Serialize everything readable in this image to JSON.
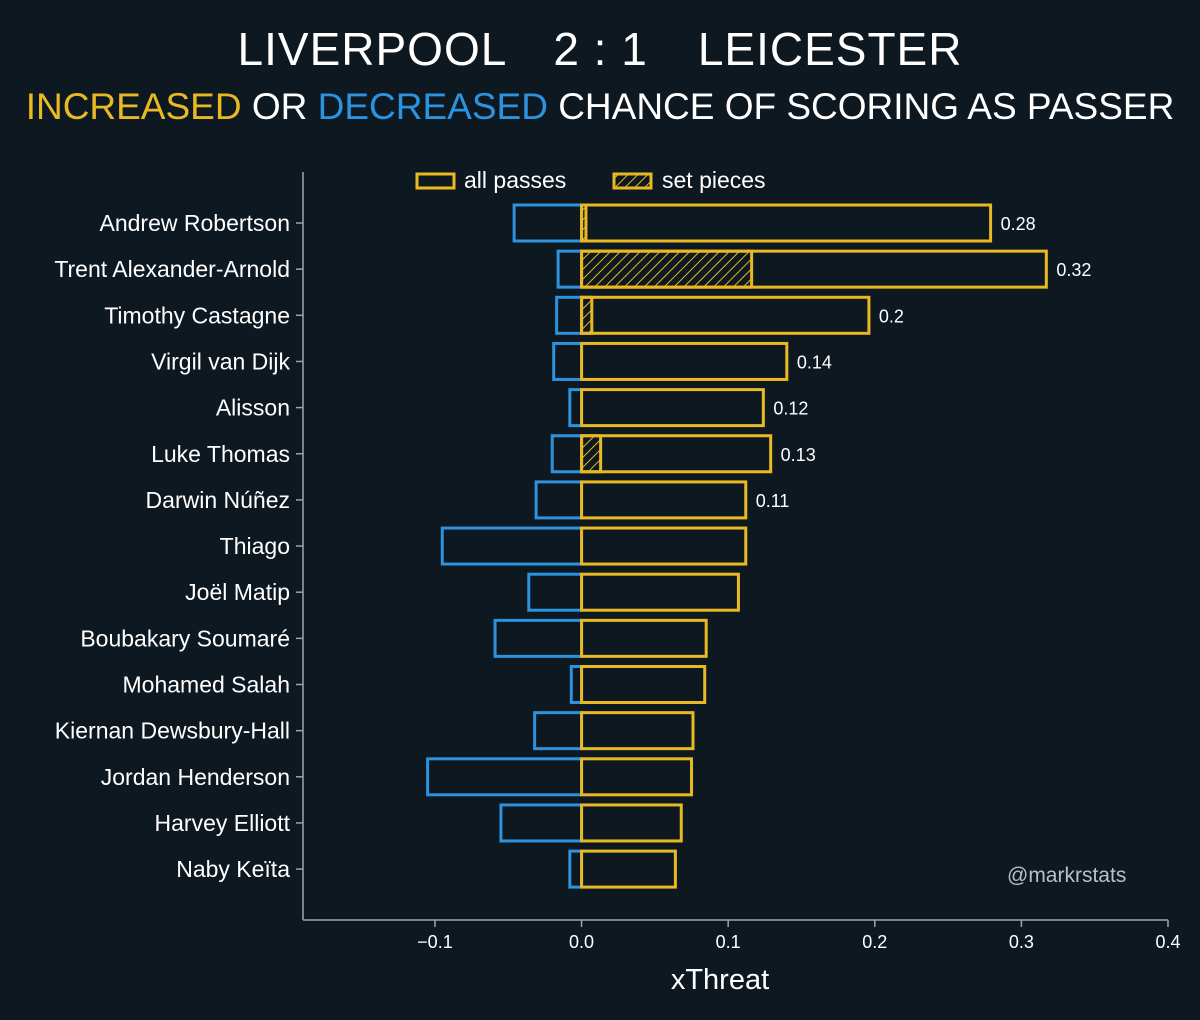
{
  "header": {
    "home_team": "LIVERPOOL",
    "score": "2 : 1",
    "away_team": "LEICESTER",
    "subtitle_increased": "INCREASED",
    "subtitle_or": " OR ",
    "subtitle_decreased": "DECREASED",
    "subtitle_rest": " CHANCE OF SCORING AS PASSER"
  },
  "watermark": "@markrstats",
  "colors": {
    "background": "#0e1820",
    "increase": "#e8b923",
    "decrease": "#2b93e0",
    "axis": "#9aa6ad",
    "text": "#ffffff"
  },
  "chart_data": {
    "type": "bar",
    "orientation": "horizontal",
    "xlabel": "xThreat",
    "ylabel": "",
    "xlim": [
      -0.19,
      0.4
    ],
    "xticks": [
      -0.1,
      0.0,
      0.1,
      0.2,
      0.3,
      0.4
    ],
    "xtick_labels": [
      "−0.1",
      "0.0",
      "0.1",
      "0.2",
      "0.3",
      "0.4"
    ],
    "legend": {
      "placement": "top",
      "entries": [
        "all passes",
        "set pieces"
      ]
    },
    "categories": [
      "Andrew Robertson",
      "Trent Alexander-Arnold",
      "Timothy Castagne",
      "Virgil van Dijk",
      "Alisson",
      "Luke Thomas",
      "Darwin Núñez",
      "Thiago",
      "Joël Matip",
      "Boubakary Soumaré",
      "Mohamed Salah",
      "Kiernan Dewsbury-Hall",
      "Jordan Henderson",
      "Harvey Elliott",
      "Naby Keïta"
    ],
    "series": [
      {
        "name": "all passes",
        "positive": [
          0.279,
          0.317,
          0.196,
          0.14,
          0.124,
          0.129,
          0.112,
          0.112,
          0.107,
          0.085,
          0.084,
          0.076,
          0.075,
          0.068,
          0.064
        ],
        "negative": [
          -0.046,
          -0.016,
          -0.017,
          -0.019,
          -0.008,
          -0.02,
          -0.031,
          -0.095,
          -0.036,
          -0.059,
          -0.007,
          -0.032,
          -0.105,
          -0.055,
          -0.008
        ]
      },
      {
        "name": "set pieces",
        "positive": [
          0.003,
          0.116,
          0.007,
          0,
          0,
          0.013,
          0,
          0,
          0,
          0,
          0,
          0,
          0,
          0,
          0
        ]
      }
    ],
    "data_labels": [
      "0.28",
      "0.32",
      "0.2",
      "0.14",
      "0.12",
      "0.13",
      "0.11",
      "",
      "",
      "",
      "",
      "",
      "",
      "",
      ""
    ]
  }
}
